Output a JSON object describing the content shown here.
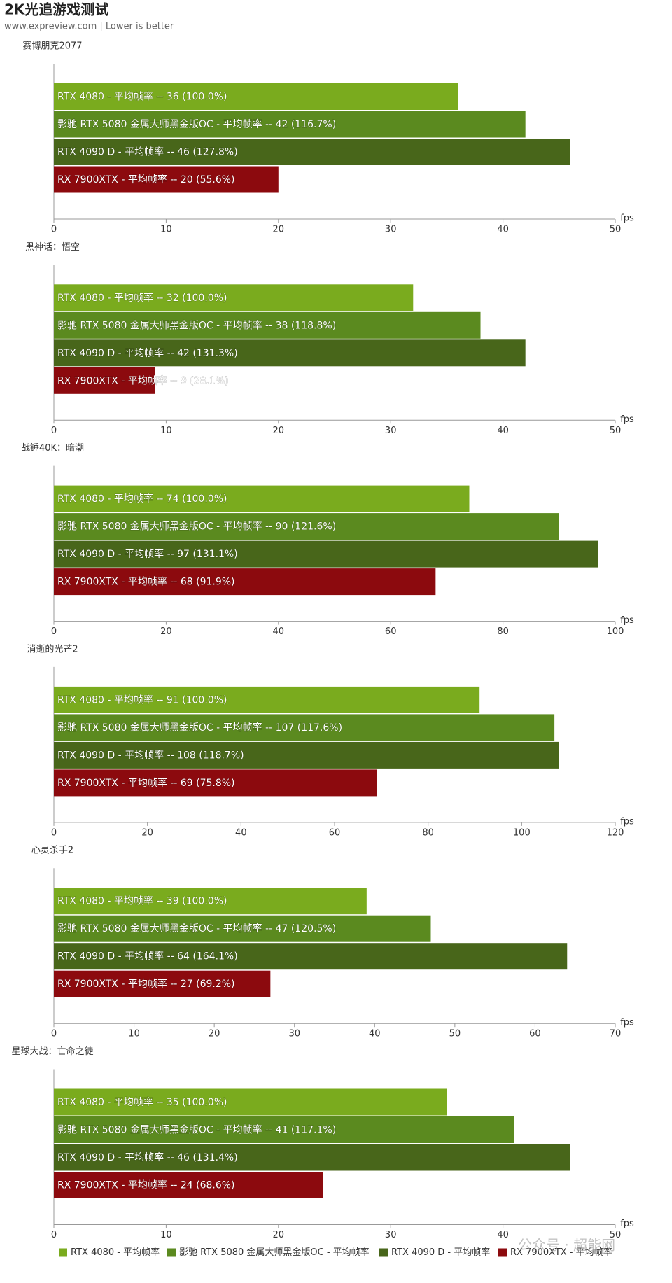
{
  "title": "2K光追游戏测试",
  "subtitle": "www.expreview.com | Lower is better",
  "watermark": "公众号 · 超能网",
  "chart_data": [
    {
      "type": "bar",
      "orientation": "horizontal",
      "title": "赛博朋克2077",
      "x_label": "fps",
      "xlim": [
        0,
        50
      ],
      "xticks": [
        0,
        10,
        20,
        30,
        40,
        50
      ],
      "series": [
        {
          "name": "RTX 4080 - 平均帧率",
          "color": "#7aab1e",
          "values": [
            36
          ],
          "value_labels": [
            "RTX 4080 - 平均帧率  --  36 (100.0%)"
          ]
        },
        {
          "name": "影驰 RTX 5080 金属大师黑金版OC - 平均帧率",
          "color": "#5b8a1f",
          "values": [
            42
          ],
          "value_labels": [
            "影驰 RTX 5080 金属大师黑金版OC - 平均帧率  --  42 (116.7%)"
          ]
        },
        {
          "name": "RTX 4090 D - 平均帧率",
          "color": "#48661a",
          "values": [
            46
          ],
          "value_labels": [
            "RTX 4090 D - 平均帧率  --  46 (127.8%)"
          ]
        },
        {
          "name": "RX 7900XTX - 平均帧率",
          "color": "#8c0a0e",
          "values": [
            20
          ],
          "value_labels": [
            "RX 7900XTX - 平均帧率  --  20 (55.6%)"
          ]
        }
      ]
    },
    {
      "type": "bar",
      "orientation": "horizontal",
      "title": "黑神话：悟空",
      "x_label": "fps",
      "xlim": [
        0,
        50
      ],
      "xticks": [
        0,
        10,
        20,
        30,
        40,
        50
      ],
      "series": [
        {
          "name": "RTX 4080 - 平均帧率",
          "color": "#7aab1e",
          "values": [
            32
          ],
          "value_labels": [
            "RTX 4080 - 平均帧率  --  32 (100.0%)"
          ]
        },
        {
          "name": "影驰 RTX 5080 金属大师黑金版OC - 平均帧率",
          "color": "#5b8a1f",
          "values": [
            38
          ],
          "value_labels": [
            "影驰 RTX 5080 金属大师黑金版OC - 平均帧率  --  38 (118.8%)"
          ]
        },
        {
          "name": "RTX 4090 D - 平均帧率",
          "color": "#48661a",
          "values": [
            42
          ],
          "value_labels": [
            "RTX 4090 D - 平均帧率  --  42 (131.3%)"
          ]
        },
        {
          "name": "RX 7900XTX - 平均帧率",
          "color": "#8c0a0e",
          "values": [
            9
          ],
          "value_labels": [
            "RX 7900XTX - 平均帧率  --  9 (28.1%)"
          ]
        }
      ]
    },
    {
      "type": "bar",
      "orientation": "horizontal",
      "title": "战锤40K：暗潮",
      "x_label": "fps",
      "xlim": [
        0,
        100
      ],
      "xticks": [
        0,
        20,
        40,
        60,
        80,
        100
      ],
      "series": [
        {
          "name": "RTX 4080 - 平均帧率",
          "color": "#7aab1e",
          "values": [
            74
          ],
          "value_labels": [
            "RTX 4080 - 平均帧率  --  74 (100.0%)"
          ]
        },
        {
          "name": "影驰 RTX 5080 金属大师黑金版OC - 平均帧率",
          "color": "#5b8a1f",
          "values": [
            90
          ],
          "value_labels": [
            "影驰 RTX 5080 金属大师黑金版OC - 平均帧率  --  90 (121.6%)"
          ]
        },
        {
          "name": "RTX 4090 D - 平均帧率",
          "color": "#48661a",
          "values": [
            97
          ],
          "value_labels": [
            "RTX 4090 D - 平均帧率  --  97 (131.1%)"
          ]
        },
        {
          "name": "RX 7900XTX - 平均帧率",
          "color": "#8c0a0e",
          "values": [
            68
          ],
          "value_labels": [
            "RX 7900XTX - 平均帧率  --  68 (91.9%)"
          ]
        }
      ]
    },
    {
      "type": "bar",
      "orientation": "horizontal",
      "title": "消逝的光芒2",
      "x_label": "fps",
      "xlim": [
        0,
        120
      ],
      "xticks": [
        0,
        20,
        40,
        60,
        80,
        100,
        120
      ],
      "series": [
        {
          "name": "RTX 4080 - 平均帧率",
          "color": "#7aab1e",
          "values": [
            91
          ],
          "value_labels": [
            "RTX 4080 - 平均帧率  --  91 (100.0%)"
          ]
        },
        {
          "name": "影驰 RTX 5080 金属大师黑金版OC - 平均帧率",
          "color": "#5b8a1f",
          "values": [
            107
          ],
          "value_labels": [
            "影驰 RTX 5080 金属大师黑金版OC - 平均帧率  --  107 (117.6%)"
          ]
        },
        {
          "name": "RTX 4090 D - 平均帧率",
          "color": "#48661a",
          "values": [
            108
          ],
          "value_labels": [
            "RTX 4090 D - 平均帧率  --  108 (118.7%)"
          ]
        },
        {
          "name": "RX 7900XTX - 平均帧率",
          "color": "#8c0a0e",
          "values": [
            69
          ],
          "value_labels": [
            "RX 7900XTX - 平均帧率  --  69 (75.8%)"
          ]
        }
      ]
    },
    {
      "type": "bar",
      "orientation": "horizontal",
      "title": "心灵杀手2",
      "x_label": "fps",
      "xlim": [
        0,
        70
      ],
      "xticks": [
        0,
        10,
        20,
        30,
        40,
        50,
        60,
        70
      ],
      "series": [
        {
          "name": "RTX 4080 - 平均帧率",
          "color": "#7aab1e",
          "values": [
            39
          ],
          "value_labels": [
            "RTX 4080 - 平均帧率  --  39 (100.0%)"
          ]
        },
        {
          "name": "影驰 RTX 5080 金属大师黑金版OC - 平均帧率",
          "color": "#5b8a1f",
          "values": [
            47
          ],
          "value_labels": [
            "影驰 RTX 5080 金属大师黑金版OC - 平均帧率  --  47 (120.5%)"
          ]
        },
        {
          "name": "RTX 4090 D - 平均帧率",
          "color": "#48661a",
          "values": [
            64
          ],
          "value_labels": [
            "RTX 4090 D - 平均帧率  --  64 (164.1%)"
          ]
        },
        {
          "name": "RX 7900XTX - 平均帧率",
          "color": "#8c0a0e",
          "values": [
            27
          ],
          "value_labels": [
            "RX 7900XTX - 平均帧率  --  27 (69.2%)"
          ]
        }
      ]
    },
    {
      "type": "bar",
      "orientation": "horizontal",
      "title": "星球大战：亡命之徒",
      "x_label": "fps",
      "xlim": [
        0,
        50
      ],
      "xticks": [
        0,
        10,
        20,
        30,
        40,
        50
      ],
      "legend": "bottom",
      "series": [
        {
          "name": "RTX 4080 - 平均帧率",
          "color": "#7aab1e",
          "values": [
            35
          ],
          "value_labels": [
            "RTX 4080 - 平均帧率  --  35 (100.0%)"
          ]
        },
        {
          "name": "影驰 RTX 5080 金属大师黑金版OC - 平均帧率",
          "color": "#5b8a1f",
          "values": [
            41
          ],
          "value_labels": [
            "影驰 RTX 5080 金属大师黑金版OC - 平均帧率  --  41 (117.1%)"
          ]
        },
        {
          "name": "RTX 4090 D - 平均帧率",
          "color": "#48661a",
          "values": [
            46
          ],
          "value_labels": [
            "RTX 4090 D - 平均帧率  --  46 (131.4%)"
          ]
        },
        {
          "name": "RX 7900XTX - 平均帧率",
          "color": "#8c0a0e",
          "values": [
            24
          ],
          "value_labels": [
            "RX 7900XTX - 平均帧率  --  24 (68.6%)"
          ]
        }
      ]
    }
  ]
}
